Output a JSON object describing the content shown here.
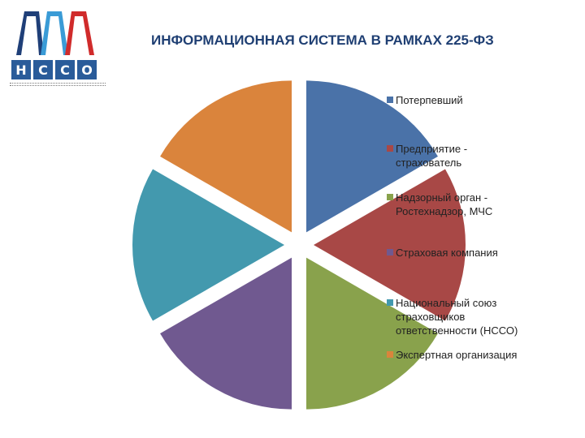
{
  "logo": {
    "letters": [
      "Н",
      "С",
      "С",
      "О"
    ],
    "flag_colors": [
      "#1f3f78",
      "#3a9bd6",
      "#d02b2b"
    ]
  },
  "chart_data": {
    "type": "pie",
    "title": "ИНФОРМАЦИОННАЯ СИСТЕМА В РАМКАХ 225-ФЗ",
    "exploded": true,
    "legend_position": "right",
    "slices": [
      {
        "label_lines": [
          "Потерпевший"
        ],
        "value": 1,
        "color": "#4a72a8"
      },
      {
        "label_lines": [
          "Предприятие -",
          "страхователь"
        ],
        "value": 1,
        "color": "#a84846"
      },
      {
        "label_lines": [
          "Надзорный орган -",
          "Ростехнадзор, МЧС"
        ],
        "value": 1,
        "color": "#89a24c"
      },
      {
        "label_lines": [
          "Страховая компания"
        ],
        "value": 1,
        "color": "#705990"
      },
      {
        "label_lines": [
          "Национальный союз",
          "страховщиков",
          "ответственности (НССО)"
        ],
        "value": 1,
        "color": "#4399ae"
      },
      {
        "label_lines": [
          "Экспертная организация"
        ],
        "value": 1,
        "color": "#da843c"
      }
    ]
  }
}
